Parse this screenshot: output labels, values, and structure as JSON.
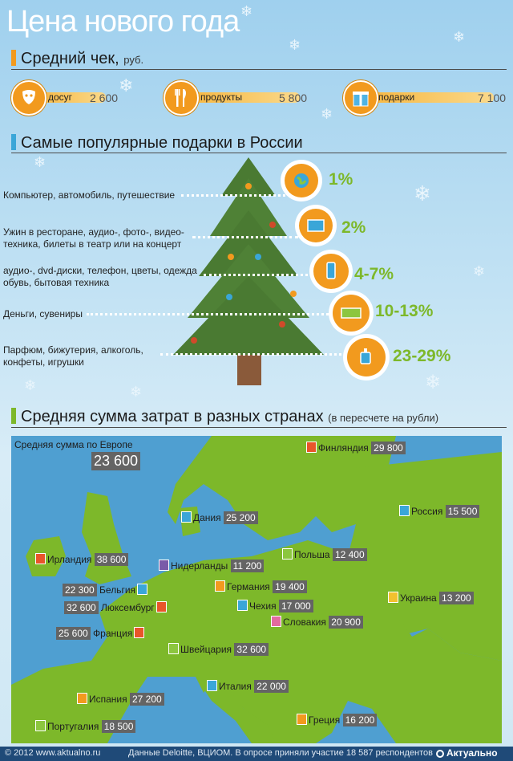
{
  "title": "Цена нового года",
  "section1": {
    "title": "Средний чек,",
    "unit": "руб."
  },
  "spending": [
    {
      "icon": "masks-icon",
      "label": "досуг",
      "value": "2 600",
      "level": 0.37
    },
    {
      "icon": "fork-knife-icon",
      "label": "продукты",
      "value": "5 800",
      "level": 0.82
    },
    {
      "icon": "gift-icon",
      "label": "подарки",
      "value": "7 100",
      "level": 1.0
    }
  ],
  "section2": {
    "title": "Самые популярные подарки в России"
  },
  "gifts": [
    {
      "label": [
        "Компьютер, автомобиль, путешествие"
      ],
      "pct": "1%",
      "icon": "globe-icon"
    },
    {
      "label": [
        "Ужин в ресторане, аудио-, фото-, видео-",
        "техника, билеты в театр или на концерт"
      ],
      "pct": "2%",
      "icon": "tv-icon"
    },
    {
      "label": [
        "аудио-, dvd-диски, телефон, цветы, одежда",
        "обувь, бытовая техника"
      ],
      "pct": "4-7%",
      "icon": "phone-icon"
    },
    {
      "label": [
        "Деньги, сувениры"
      ],
      "pct": "10-13%",
      "icon": "money-icon"
    },
    {
      "label": [
        "Парфюм, бижутерия, алкоголь,",
        "конфеты, игрушки"
      ],
      "pct": "23-29%",
      "icon": "perfume-icon"
    }
  ],
  "section3": {
    "title": "Средняя сумма затрат в разных странах",
    "note": "(в пересчете на рубли)"
  },
  "europe": {
    "label": "Средняя сумма по Европе",
    "value": "23 600"
  },
  "countries": [
    {
      "name": "Финляндия",
      "value": "29 800",
      "color": "#e8552a"
    },
    {
      "name": "Россия",
      "value": "15 500",
      "color": "#3aa6d8"
    },
    {
      "name": "Дания",
      "value": "25 200",
      "color": "#3aa6d8"
    },
    {
      "name": "Ирландия",
      "value": "38 600",
      "color": "#e8552a"
    },
    {
      "name": "Нидерланды",
      "value": "11 200",
      "color": "#7a5aa8"
    },
    {
      "name": "Польша",
      "value": "12 400",
      "color": "#8cc63f"
    },
    {
      "name": "Бельгия",
      "value": "22 300",
      "color": "#3aa6d8"
    },
    {
      "name": "Германия",
      "value": "19 400",
      "color": "#f29a1e"
    },
    {
      "name": "Люксембург",
      "value": "32 600",
      "color": "#e8552a"
    },
    {
      "name": "Чехия",
      "value": "17 000",
      "color": "#3aa6d8"
    },
    {
      "name": "Украина",
      "value": "13 200",
      "color": "#f2c12e"
    },
    {
      "name": "Словакия",
      "value": "20 900",
      "color": "#e36aa0"
    },
    {
      "name": "Франция",
      "value": "25 600",
      "color": "#e8552a"
    },
    {
      "name": "Швейцария",
      "value": "32 600",
      "color": "#8cc63f"
    },
    {
      "name": "Италия",
      "value": "22 000",
      "color": "#3aa6d8"
    },
    {
      "name": "Испания",
      "value": "27 200",
      "color": "#f29a1e"
    },
    {
      "name": "Греция",
      "value": "16 200",
      "color": "#f29a1e"
    },
    {
      "name": "Португалия",
      "value": "18 500",
      "color": "#8cc63f"
    }
  ],
  "footer": {
    "copyright": "© 2012 www.aktualno.ru",
    "source": "Данные Deloitte, ВЦИОМ. В опросе приняли участие 18 587 респондентов",
    "brand": "Актуально"
  },
  "colors": {
    "orange": "#f29a1e",
    "green": "#7db82a",
    "tree": "#4a7a32"
  }
}
